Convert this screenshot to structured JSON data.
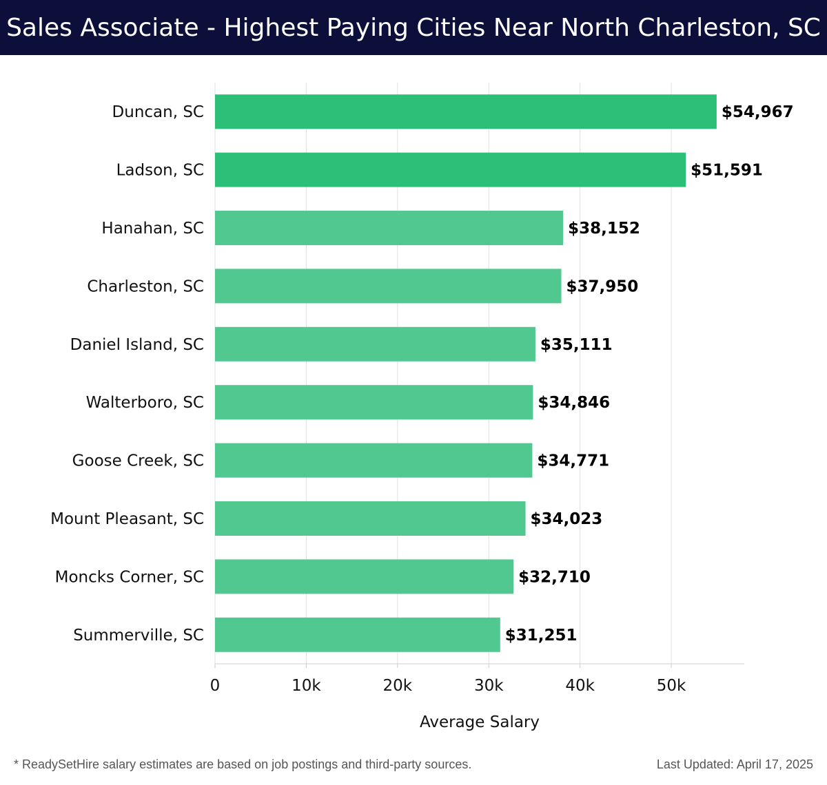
{
  "header": {
    "title": "Sales Associate - Highest Paying Cities Near North Charleston, SC"
  },
  "chart_data": {
    "type": "bar",
    "orientation": "horizontal",
    "categories": [
      "Duncan, SC",
      "Ladson, SC",
      "Hanahan, SC",
      "Charleston, SC",
      "Daniel Island, SC",
      "Walterboro, SC",
      "Goose Creek, SC",
      "Mount Pleasant, SC",
      "Moncks Corner, SC",
      "Summerville, SC"
    ],
    "values": [
      54967,
      51591,
      38152,
      37950,
      35111,
      34846,
      34771,
      34023,
      32710,
      31251
    ],
    "value_labels": [
      "$54,967",
      "$51,591",
      "$38,152",
      "$37,950",
      "$35,111",
      "$34,846",
      "$34,771",
      "$34,023",
      "$32,710",
      "$31,251"
    ],
    "xlabel": "Average Salary",
    "ylabel": "",
    "xlim": [
      0,
      58000
    ],
    "x_ticks": [
      0,
      10000,
      20000,
      30000,
      40000,
      50000
    ],
    "x_tick_labels": [
      "0",
      "10k",
      "20k",
      "30k",
      "40k",
      "50k"
    ],
    "grid": true,
    "colors": {
      "top": "#2bbf77",
      "rest": "#52c891",
      "grid": "#e0e0e0",
      "axis": "#cccccc",
      "text": "#111111"
    }
  },
  "footer": {
    "note": "* ReadySetHire salary estimates are based on job postings and third-party sources.",
    "updated": "Last Updated: April 17, 2025"
  }
}
